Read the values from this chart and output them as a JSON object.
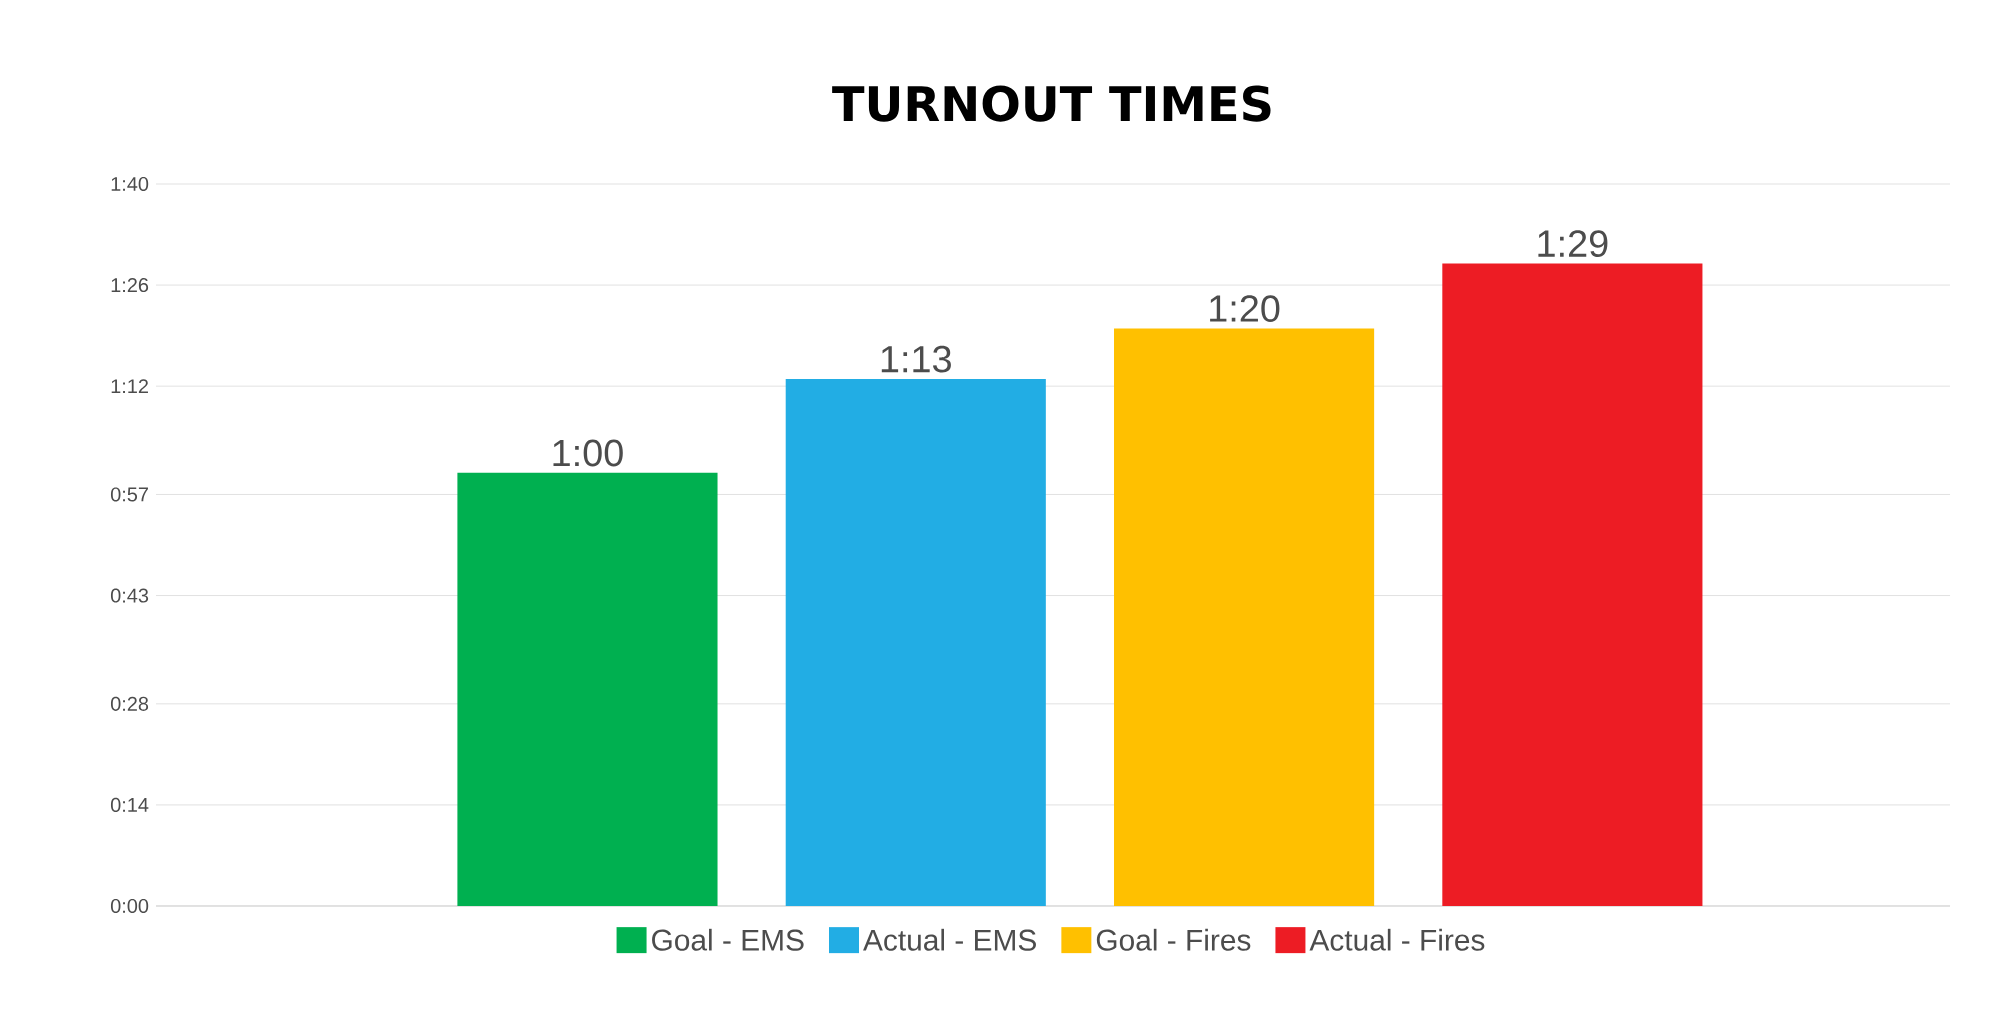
{
  "chart_data": {
    "type": "bar",
    "title": "TURNOUT TIMES",
    "categories": [
      null
    ],
    "series": [
      {
        "name": "Goal - EMS",
        "color": "#00b050",
        "values": [
          60
        ],
        "value_labels": [
          "1:00"
        ]
      },
      {
        "name": "Actual - EMS",
        "color": "#22ade4",
        "values": [
          73
        ],
        "value_labels": [
          "1:13"
        ]
      },
      {
        "name": "Goal - Fires",
        "color": "#ffc000",
        "values": [
          80
        ],
        "value_labels": [
          "1:20"
        ]
      },
      {
        "name": "Actual - Fires",
        "color": "#ed1c24",
        "values": [
          89
        ],
        "value_labels": [
          "1:29"
        ]
      }
    ],
    "ylim": [
      0,
      100
    ],
    "yticks": [
      {
        "value": 0,
        "label": "0:00"
      },
      {
        "value": 14,
        "label": "0:14"
      },
      {
        "value": 28,
        "label": "0:28"
      },
      {
        "value": 43,
        "label": "0:43"
      },
      {
        "value": 57,
        "label": "0:57"
      },
      {
        "value": 72,
        "label": "1:12"
      },
      {
        "value": 86,
        "label": "1:26"
      },
      {
        "value": 100,
        "label": "1:40"
      }
    ],
    "grid": "y",
    "legend": "bottom"
  }
}
